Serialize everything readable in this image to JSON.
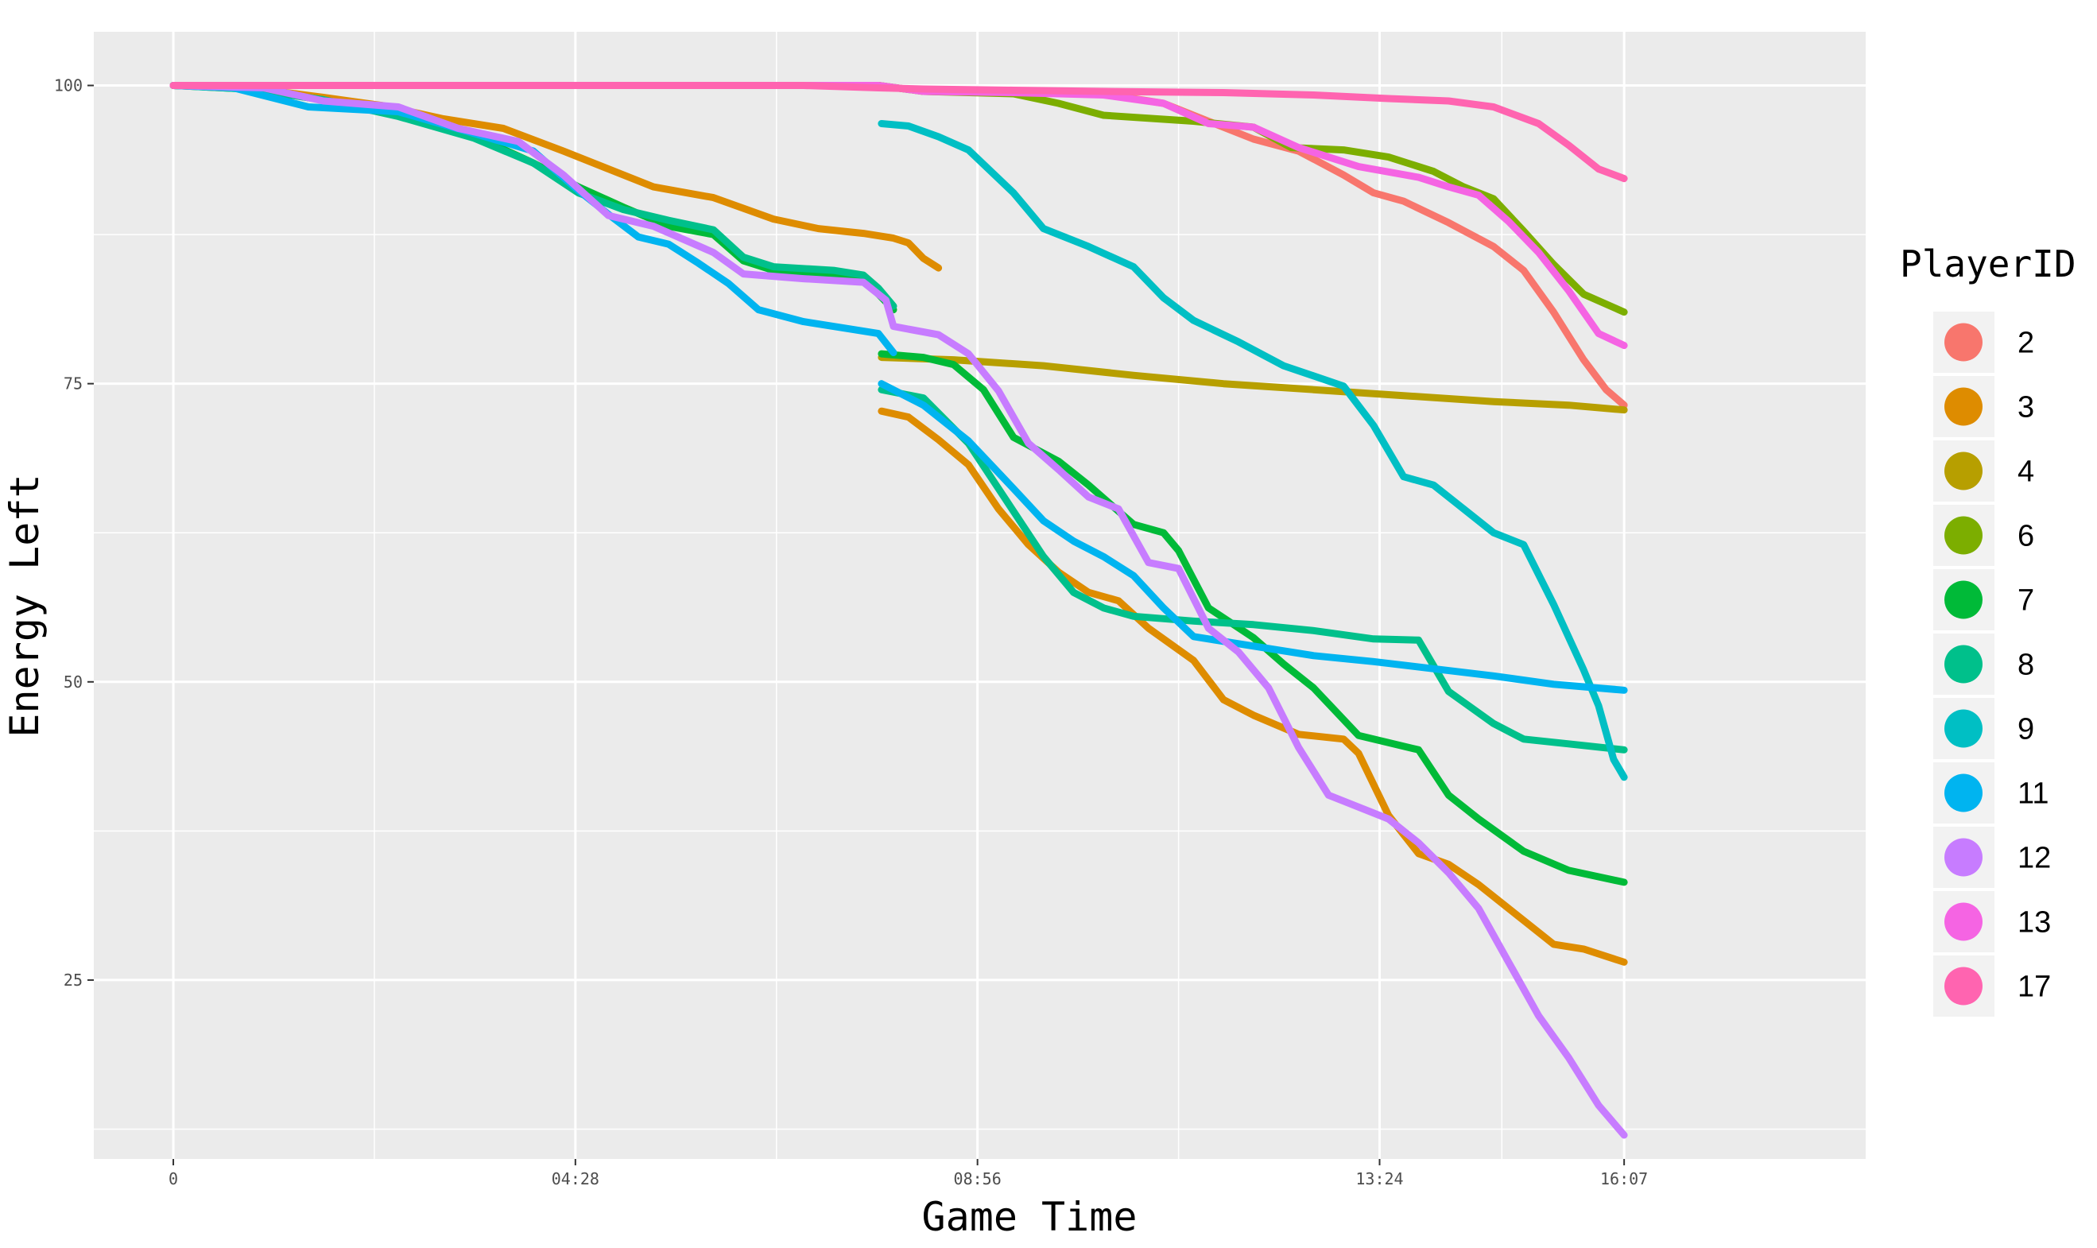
{
  "chart_data": {
    "type": "line",
    "xlabel": "Game Time",
    "ylabel": "Energy Left",
    "x_unit": "seconds",
    "xlim": [
      -53,
      1128
    ],
    "ylim": [
      10,
      104.5
    ],
    "x_ticks": [
      {
        "value": 0,
        "label": "0"
      },
      {
        "value": 268,
        "label": "04:28"
      },
      {
        "value": 536,
        "label": "08:56"
      },
      {
        "value": 804,
        "label": "13:24"
      },
      {
        "value": 967,
        "label": "16:07"
      }
    ],
    "y_ticks": [
      {
        "value": 25,
        "label": "25"
      },
      {
        "value": 50,
        "label": "50"
      },
      {
        "value": 75,
        "label": "75"
      },
      {
        "value": 100,
        "label": "100"
      }
    ],
    "grid": true,
    "legend": {
      "title": "PlayerID",
      "position": "right"
    },
    "series": [
      {
        "name": "2",
        "color": "#F8766D",
        "points": [
          [
            0,
            100
          ],
          [
            470,
            100
          ],
          [
            500,
            99.5
          ],
          [
            560,
            99.4
          ],
          [
            620,
            99.3
          ],
          [
            660,
            98.5
          ],
          [
            690,
            97
          ],
          [
            720,
            95.5
          ],
          [
            750,
            94.5
          ],
          [
            780,
            92.5
          ],
          [
            800,
            91
          ],
          [
            820,
            90.3
          ],
          [
            850,
            88.5
          ],
          [
            880,
            86.5
          ],
          [
            900,
            84.5
          ],
          [
            920,
            81
          ],
          [
            940,
            77
          ],
          [
            955,
            74.5
          ],
          [
            967,
            73.2
          ]
        ]
      },
      {
        "name": "3",
        "color": "#DE8C00",
        "points": [
          [
            0,
            100
          ],
          [
            50,
            99.8
          ],
          [
            100,
            99
          ],
          [
            140,
            98.3
          ],
          [
            180,
            97.2
          ],
          [
            220,
            96.4
          ],
          [
            260,
            94.5
          ],
          [
            290,
            93
          ],
          [
            320,
            91.5
          ],
          [
            360,
            90.6
          ],
          [
            400,
            88.8
          ],
          [
            430,
            88
          ],
          [
            460,
            87.6
          ],
          [
            480,
            87.2
          ],
          [
            490,
            86.8
          ],
          [
            500,
            85.5
          ],
          [
            510,
            84.7
          ],
          [
            null,
            null
          ],
          [
            472,
            72.7
          ],
          [
            490,
            72.2
          ],
          [
            510,
            70.3
          ],
          [
            530,
            68.2
          ],
          [
            550,
            64.5
          ],
          [
            570,
            61.5
          ],
          [
            590,
            59.2
          ],
          [
            610,
            57.5
          ],
          [
            630,
            56.8
          ],
          [
            650,
            54.5
          ],
          [
            680,
            51.8
          ],
          [
            700,
            48.5
          ],
          [
            720,
            47.2
          ],
          [
            750,
            45.6
          ],
          [
            780,
            45.2
          ],
          [
            790,
            44
          ],
          [
            810,
            38.8
          ],
          [
            830,
            35.6
          ],
          [
            850,
            34.7
          ],
          [
            870,
            33
          ],
          [
            900,
            30
          ],
          [
            920,
            28
          ],
          [
            940,
            27.6
          ],
          [
            967,
            26.5
          ]
        ]
      },
      {
        "name": "4",
        "color": "#B79F00",
        "points": [
          [
            472,
            77.2
          ],
          [
            520,
            77
          ],
          [
            580,
            76.5
          ],
          [
            640,
            75.7
          ],
          [
            700,
            75
          ],
          [
            760,
            74.5
          ],
          [
            820,
            74
          ],
          [
            880,
            73.5
          ],
          [
            930,
            73.2
          ],
          [
            967,
            72.8
          ]
        ]
      },
      {
        "name": "6",
        "color": "#7CAE00",
        "points": [
          [
            0,
            100
          ],
          [
            470,
            100
          ],
          [
            500,
            99.5
          ],
          [
            560,
            99.3
          ],
          [
            590,
            98.5
          ],
          [
            620,
            97.5
          ],
          [
            680,
            97
          ],
          [
            720,
            96.5
          ],
          [
            745,
            94.8
          ],
          [
            780,
            94.6
          ],
          [
            810,
            94
          ],
          [
            840,
            92.8
          ],
          [
            860,
            91.5
          ],
          [
            880,
            90.5
          ],
          [
            900,
            87.8
          ],
          [
            920,
            85
          ],
          [
            940,
            82.5
          ],
          [
            967,
            81
          ]
        ]
      },
      {
        "name": "7",
        "color": "#00BA38",
        "points": [
          [
            0,
            100
          ],
          [
            50,
            99.7
          ],
          [
            100,
            98.8
          ],
          [
            150,
            97.5
          ],
          [
            200,
            95.8
          ],
          [
            240,
            93.5
          ],
          [
            270,
            91.5
          ],
          [
            300,
            89.8
          ],
          [
            330,
            88.2
          ],
          [
            360,
            87.5
          ],
          [
            380,
            85.3
          ],
          [
            400,
            84.5
          ],
          [
            440,
            84.1
          ],
          [
            460,
            83.8
          ],
          [
            470,
            82.5
          ],
          [
            480,
            81.2
          ],
          [
            null,
            null
          ],
          [
            472,
            77.5
          ],
          [
            500,
            77.2
          ],
          [
            520,
            76.6
          ],
          [
            540,
            74.5
          ],
          [
            560,
            70.5
          ],
          [
            590,
            68.5
          ],
          [
            610,
            66.5
          ],
          [
            640,
            63.2
          ],
          [
            660,
            62.5
          ],
          [
            670,
            61
          ],
          [
            690,
            56.2
          ],
          [
            720,
            53.7
          ],
          [
            740,
            51.5
          ],
          [
            760,
            49.5
          ],
          [
            790,
            45.5
          ],
          [
            830,
            44.3
          ],
          [
            850,
            40.5
          ],
          [
            870,
            38.5
          ],
          [
            900,
            35.8
          ],
          [
            930,
            34.2
          ],
          [
            967,
            33.2
          ]
        ]
      },
      {
        "name": "8",
        "color": "#00C08B",
        "points": [
          [
            0,
            100
          ],
          [
            50,
            99.7
          ],
          [
            100,
            98.8
          ],
          [
            150,
            97.4
          ],
          [
            200,
            95.6
          ],
          [
            240,
            93.5
          ],
          [
            270,
            91
          ],
          [
            300,
            89.6
          ],
          [
            330,
            88.7
          ],
          [
            360,
            87.9
          ],
          [
            380,
            85.6
          ],
          [
            400,
            84.8
          ],
          [
            440,
            84.5
          ],
          [
            460,
            84.1
          ],
          [
            470,
            83
          ],
          [
            480,
            81.5
          ],
          [
            null,
            null
          ],
          [
            472,
            74.5
          ],
          [
            500,
            73.8
          ],
          [
            530,
            70
          ],
          [
            550,
            66.2
          ],
          [
            580,
            60.5
          ],
          [
            600,
            57.5
          ],
          [
            620,
            56.2
          ],
          [
            640,
            55.5
          ],
          [
            680,
            55.1
          ],
          [
            720,
            54.8
          ],
          [
            760,
            54.3
          ],
          [
            800,
            53.6
          ],
          [
            830,
            53.5
          ],
          [
            850,
            49.2
          ],
          [
            880,
            46.5
          ],
          [
            900,
            45.2
          ],
          [
            930,
            44.8
          ],
          [
            967,
            44.3
          ]
        ]
      },
      {
        "name": "9",
        "color": "#00BFC4",
        "points": [
          [
            472,
            96.8
          ],
          [
            490,
            96.6
          ],
          [
            510,
            95.7
          ],
          [
            530,
            94.6
          ],
          [
            560,
            91
          ],
          [
            580,
            88
          ],
          [
            610,
            86.5
          ],
          [
            640,
            84.8
          ],
          [
            660,
            82.2
          ],
          [
            680,
            80.3
          ],
          [
            710,
            78.5
          ],
          [
            740,
            76.5
          ],
          [
            780,
            74.8
          ],
          [
            800,
            71.5
          ],
          [
            820,
            67.2
          ],
          [
            840,
            66.5
          ],
          [
            860,
            64.5
          ],
          [
            880,
            62.5
          ],
          [
            900,
            61.5
          ],
          [
            920,
            56.5
          ],
          [
            940,
            51
          ],
          [
            950,
            48
          ],
          [
            960,
            43.5
          ],
          [
            967,
            42
          ]
        ]
      },
      {
        "name": "11",
        "color": "#00B4F0",
        "points": [
          [
            0,
            100
          ],
          [
            40,
            99.8
          ],
          [
            90,
            98.2
          ],
          [
            150,
            97.8
          ],
          [
            200,
            96
          ],
          [
            240,
            94.5
          ],
          [
            270,
            91.2
          ],
          [
            290,
            89.2
          ],
          [
            310,
            87.3
          ],
          [
            330,
            86.7
          ],
          [
            350,
            85.1
          ],
          [
            370,
            83.4
          ],
          [
            390,
            81.2
          ],
          [
            420,
            80.2
          ],
          [
            450,
            79.6
          ],
          [
            470,
            79.2
          ],
          [
            480,
            77.6
          ],
          [
            null,
            null
          ],
          [
            472,
            75
          ],
          [
            500,
            73.2
          ],
          [
            530,
            70.2
          ],
          [
            560,
            66.2
          ],
          [
            580,
            63.5
          ],
          [
            600,
            61.8
          ],
          [
            620,
            60.5
          ],
          [
            640,
            58.9
          ],
          [
            660,
            56.2
          ],
          [
            680,
            53.8
          ],
          [
            720,
            53
          ],
          [
            760,
            52.2
          ],
          [
            800,
            51.7
          ],
          [
            840,
            51.1
          ],
          [
            880,
            50.5
          ],
          [
            920,
            49.8
          ],
          [
            967,
            49.3
          ]
        ]
      },
      {
        "name": "12",
        "color": "#C77CFF",
        "points": [
          [
            0,
            100
          ],
          [
            60,
            99.8
          ],
          [
            100,
            98.7
          ],
          [
            150,
            98.2
          ],
          [
            190,
            96.4
          ],
          [
            230,
            95.3
          ],
          [
            260,
            92.5
          ],
          [
            290,
            89.1
          ],
          [
            320,
            88.2
          ],
          [
            360,
            86
          ],
          [
            380,
            84.2
          ],
          [
            420,
            83.8
          ],
          [
            460,
            83.5
          ],
          [
            475,
            82
          ],
          [
            480,
            79.8
          ],
          [
            510,
            79.1
          ],
          [
            530,
            77.5
          ],
          [
            550,
            74.4
          ],
          [
            570,
            70
          ],
          [
            590,
            67.8
          ],
          [
            610,
            65.5
          ],
          [
            630,
            64.5
          ],
          [
            650,
            60
          ],
          [
            670,
            59.5
          ],
          [
            690,
            54.5
          ],
          [
            710,
            52.5
          ],
          [
            730,
            49.5
          ],
          [
            750,
            44.5
          ],
          [
            770,
            40.5
          ],
          [
            790,
            39.5
          ],
          [
            810,
            38.5
          ],
          [
            830,
            36.5
          ],
          [
            850,
            34
          ],
          [
            870,
            31
          ],
          [
            890,
            26.5
          ],
          [
            910,
            22
          ],
          [
            930,
            18.5
          ],
          [
            950,
            14.5
          ],
          [
            967,
            12
          ]
        ]
      },
      {
        "name": "13",
        "color": "#F564E3",
        "points": [
          [
            0,
            100
          ],
          [
            470,
            100
          ],
          [
            500,
            99.5
          ],
          [
            560,
            99.4
          ],
          [
            620,
            99.2
          ],
          [
            660,
            98.5
          ],
          [
            690,
            96.8
          ],
          [
            720,
            96.5
          ],
          [
            750,
            94.8
          ],
          [
            790,
            93.2
          ],
          [
            830,
            92.3
          ],
          [
            850,
            91.5
          ],
          [
            870,
            90.8
          ],
          [
            890,
            88.6
          ],
          [
            910,
            86
          ],
          [
            930,
            82.8
          ],
          [
            950,
            79.2
          ],
          [
            967,
            78.2
          ]
        ]
      },
      {
        "name": "17",
        "color": "#FF64B0",
        "points": [
          [
            0,
            100
          ],
          [
            200,
            100
          ],
          [
            420,
            100
          ],
          [
            470,
            99.8
          ],
          [
            500,
            99.7
          ],
          [
            560,
            99.6
          ],
          [
            620,
            99.5
          ],
          [
            700,
            99.4
          ],
          [
            760,
            99.2
          ],
          [
            810,
            98.9
          ],
          [
            850,
            98.7
          ],
          [
            880,
            98.2
          ],
          [
            910,
            96.8
          ],
          [
            930,
            95
          ],
          [
            950,
            93
          ],
          [
            967,
            92.2
          ]
        ]
      }
    ]
  }
}
